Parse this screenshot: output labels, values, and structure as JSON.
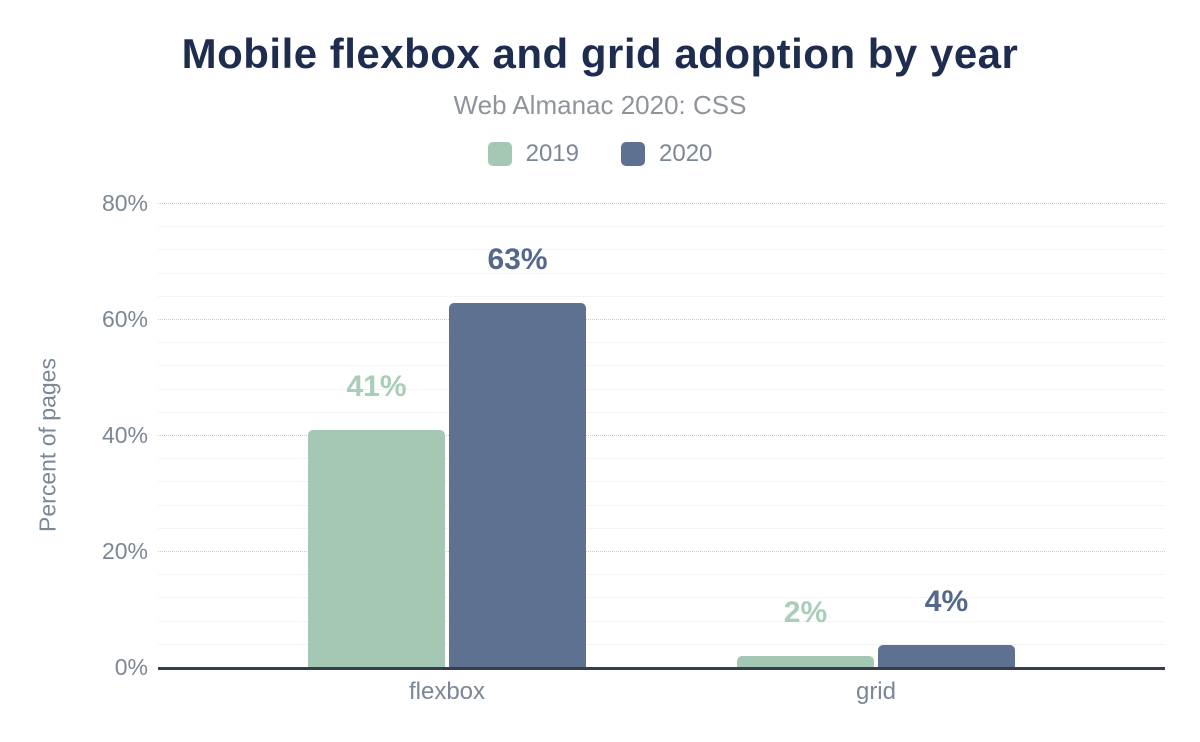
{
  "chart_data": {
    "type": "bar",
    "title": "Mobile flexbox and grid adoption by year",
    "subtitle": "Web Almanac 2020: CSS",
    "ylabel": "Percent of pages",
    "xlabel": "",
    "categories": [
      "flexbox",
      "grid"
    ],
    "series": [
      {
        "name": "2019",
        "values": [
          41,
          2
        ],
        "labels": [
          "41%",
          "2%"
        ],
        "color": "#a5c8b4",
        "label_color": "#a8cdb9"
      },
      {
        "name": "2020",
        "values": [
          63,
          4
        ],
        "labels": [
          "63%",
          "4%"
        ],
        "color": "#5e7190",
        "label_color": "#54688c"
      }
    ],
    "ylim": [
      0,
      80
    ],
    "y_ticks": [
      {
        "label": "0%",
        "value": 0
      },
      {
        "label": "20%",
        "value": 20
      },
      {
        "label": "40%",
        "value": 40
      },
      {
        "label": "60%",
        "value": 60
      },
      {
        "label": "80%",
        "value": 80
      }
    ],
    "grid": {
      "major_interval": 20,
      "minor_interval": 4,
      "major_style": "dotted",
      "minor_style": "solid"
    },
    "legend_position": "top"
  },
  "colors": {
    "title": "#1e2c4f",
    "subtitle": "#8f949c",
    "axis_text": "#7c8795",
    "axis_line": "#363e4a",
    "major_grid": "#cbcbcb",
    "minor_grid": "#f4f4f4",
    "background": "#ffffff"
  }
}
